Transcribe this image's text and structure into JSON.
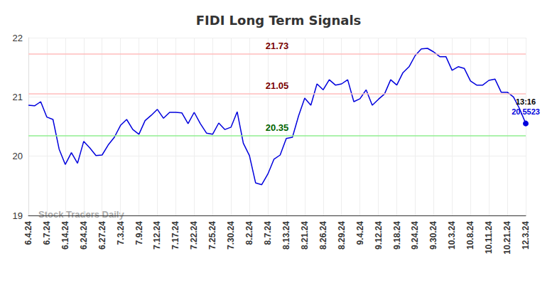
{
  "chart_data": {
    "type": "line",
    "title": "FIDI Long Term Signals",
    "categories": [
      "6.4.24",
      null,
      null,
      "6.7.24",
      null,
      null,
      "6.14.24",
      null,
      null,
      "6.24.24",
      null,
      null,
      "6.27.24",
      null,
      null,
      "7.3.24",
      null,
      null,
      "7.9.24",
      null,
      null,
      "7.12.24",
      null,
      null,
      "7.17.24",
      null,
      null,
      "7.22.24",
      null,
      null,
      "7.25.24",
      null,
      null,
      "7.30.24",
      null,
      null,
      "8.2.24",
      null,
      null,
      "8.7.24",
      null,
      null,
      "8.13.24",
      null,
      null,
      "8.21.24",
      null,
      null,
      "8.26.24",
      null,
      null,
      "8.29.24",
      null,
      null,
      "9.4.24",
      null,
      null,
      "9.12.24",
      null,
      null,
      "9.18.24",
      null,
      null,
      "9.24.24",
      null,
      null,
      "9.30.24",
      null,
      null,
      "10.3.24",
      null,
      null,
      "10.8.24",
      null,
      null,
      "10.11.24",
      null,
      null,
      "10.21.24",
      null,
      null,
      "12.3.24"
    ],
    "values": [
      20.86,
      20.85,
      20.92,
      20.66,
      20.62,
      20.12,
      19.86,
      20.06,
      19.88,
      20.25,
      20.14,
      20.01,
      20.02,
      20.19,
      20.32,
      20.52,
      20.62,
      20.45,
      20.37,
      20.6,
      20.69,
      20.79,
      20.64,
      20.74,
      20.74,
      20.73,
      20.55,
      20.74,
      20.55,
      20.39,
      20.37,
      20.56,
      20.45,
      20.49,
      20.75,
      20.22,
      20.01,
      19.55,
      19.52,
      19.7,
      19.95,
      20.02,
      20.3,
      20.32,
      20.68,
      20.98,
      20.86,
      21.22,
      21.12,
      21.29,
      21.2,
      21.22,
      21.29,
      20.92,
      20.97,
      21.12,
      20.86,
      20.96,
      21.05,
      21.29,
      21.2,
      21.41,
      21.51,
      21.7,
      21.81,
      21.82,
      21.76,
      21.68,
      21.68,
      21.45,
      21.51,
      21.48,
      21.27,
      21.2,
      21.2,
      21.28,
      21.3,
      21.08,
      21.08,
      21.0,
      20.8,
      20.5523
    ],
    "color": "#0000dd",
    "ylim": [
      19,
      22
    ],
    "yticks": [
      19,
      20,
      21,
      22
    ],
    "grid": true,
    "signal_lines": [
      {
        "value": 21.73,
        "color": "#ffbdbd",
        "label_color": "#7a0000"
      },
      {
        "value": 21.05,
        "color": "#ffbdbd",
        "label_color": "#7a0000"
      },
      {
        "value": 20.35,
        "color": "#90ee90",
        "label_color": "#006400"
      }
    ],
    "last_point_labels": [
      "13:16",
      "20.5523"
    ],
    "watermark": "Stock Traders Daily"
  }
}
